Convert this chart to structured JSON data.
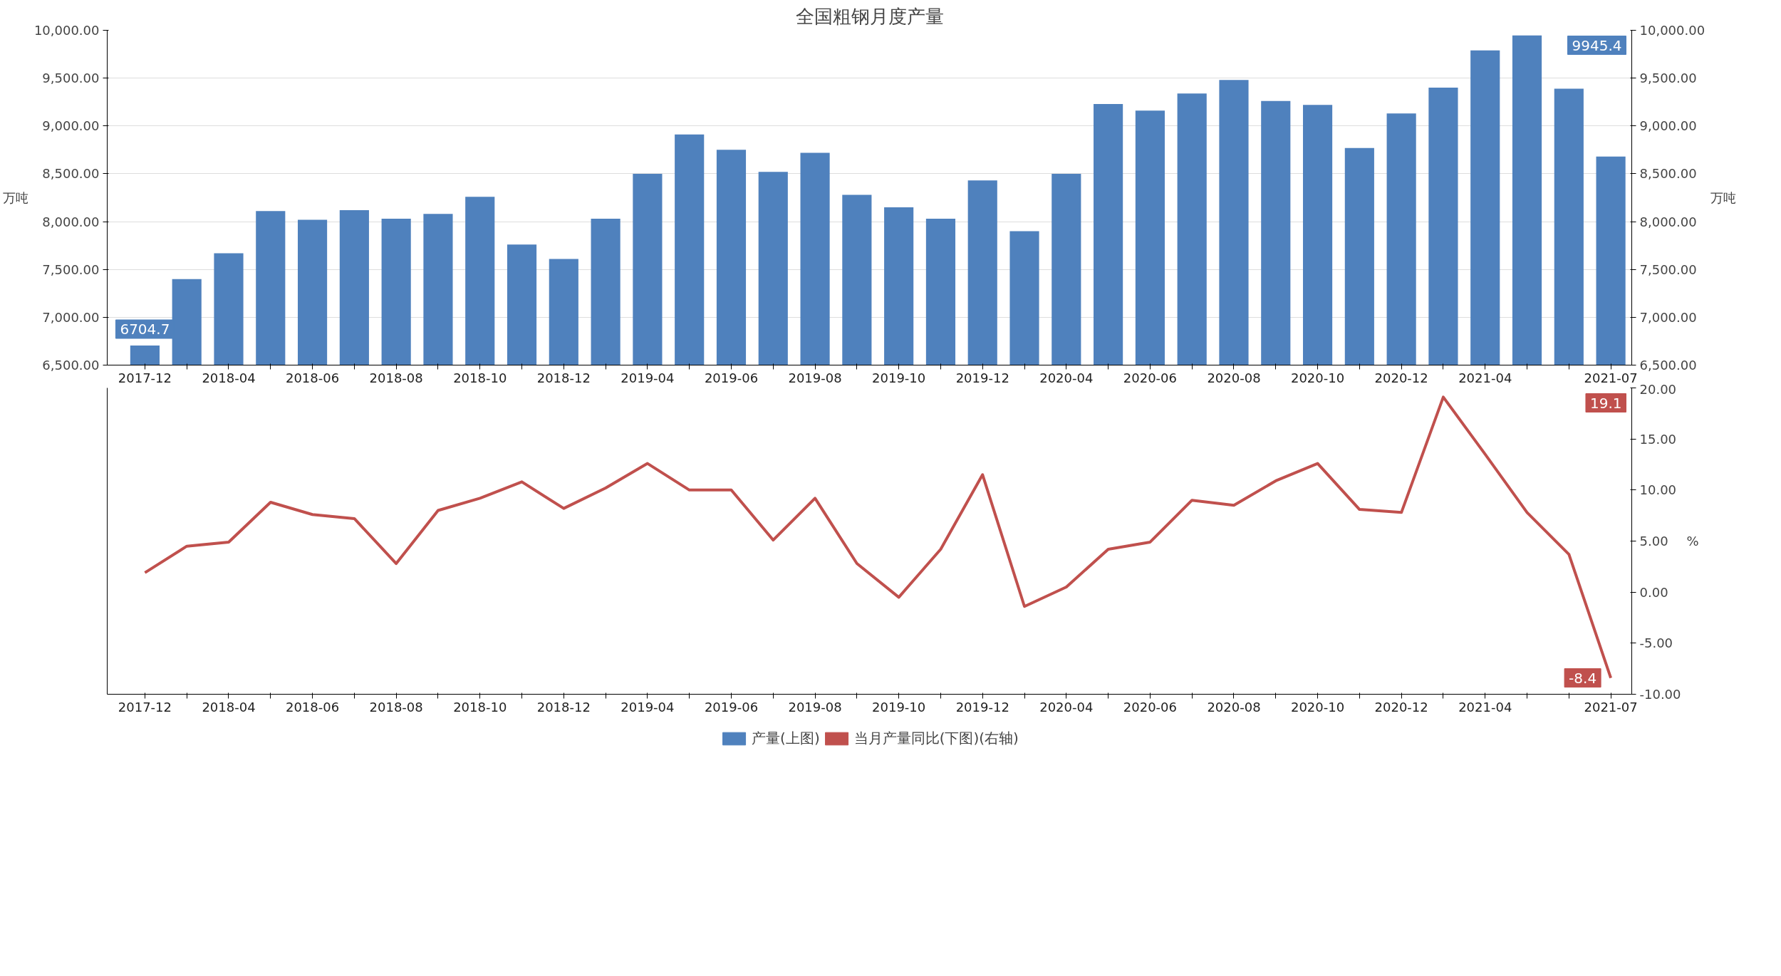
{
  "chart_data": [
    {
      "type": "bar",
      "title": "全国粗钢月度产量",
      "ylabel": "万吨",
      "y2label": "万吨",
      "categories": [
        "2017-12",
        null,
        "2018-04",
        null,
        "2018-06",
        null,
        "2018-08",
        null,
        "2018-10",
        null,
        "2018-12",
        null,
        "2019-04",
        null,
        "2019-06",
        null,
        "2019-08",
        null,
        "2019-10",
        null,
        "2019-12",
        null,
        "2020-04",
        null,
        "2020-06",
        null,
        "2020-08",
        null,
        "2020-10",
        null,
        "2020-12",
        null,
        "2021-04",
        null,
        null,
        "2021-07"
      ],
      "series": [
        {
          "name": "产量(上图)",
          "color": "#4f81bd",
          "values": [
            6704.7,
            7400,
            7670,
            8110,
            8020,
            8120,
            8030,
            8080,
            8260,
            7760,
            7610,
            8030,
            8500,
            8910,
            8750,
            8520,
            8720,
            8280,
            8150,
            8030,
            8430,
            7900,
            8500,
            9230,
            9160,
            9340,
            9480,
            9260,
            9220,
            8770,
            9130,
            9400,
            9790,
            9945.4,
            9390,
            8680
          ]
        }
      ],
      "ylim": [
        6500,
        10000
      ],
      "yticks": [
        {
          "value": 6500,
          "label": "6,500.00"
        },
        {
          "value": 7000,
          "label": "7,000.00"
        },
        {
          "value": 7500,
          "label": "7,500.00"
        },
        {
          "value": 8000,
          "label": "8,000.00"
        },
        {
          "value": 8500,
          "label": "8,500.00"
        },
        {
          "value": 9000,
          "label": "9,000.00"
        },
        {
          "value": 9500,
          "label": "9,500.00"
        },
        {
          "value": 10000,
          "label": "10,000.00"
        }
      ],
      "y2lim": [
        6500,
        10000
      ],
      "y2ticks": [
        {
          "value": 6500,
          "label": "6,500.00"
        },
        {
          "value": 7000,
          "label": "7,000.00"
        },
        {
          "value": 7500,
          "label": "7,500.00"
        },
        {
          "value": 8000,
          "label": "8,000.00"
        },
        {
          "value": 8500,
          "label": "8,500.00"
        },
        {
          "value": 9000,
          "label": "9,000.00"
        },
        {
          "value": 9500,
          "label": "9,500.00"
        },
        {
          "value": 10000,
          "label": "10,000.00"
        }
      ],
      "annotations": [
        {
          "text": "6704.7",
          "x": "2017-12",
          "y": 6704.7
        },
        "9945.4"
      ],
      "grid": "y",
      "legend": "bottom"
    },
    {
      "type": "line",
      "ylabel": "%",
      "categories": [
        "2017-12",
        null,
        "2018-04",
        null,
        "2018-06",
        null,
        "2018-08",
        null,
        "2018-10",
        null,
        "2018-12",
        null,
        "2019-04",
        null,
        "2019-06",
        null,
        "2019-08",
        null,
        "2019-10",
        null,
        "2019-12",
        null,
        "2020-04",
        null,
        "2020-06",
        null,
        "2020-08",
        null,
        "2020-10",
        null,
        "2020-12",
        null,
        "2021-04",
        null,
        null,
        "2021-07"
      ],
      "series": [
        {
          "name": "当月产量同比(下图)(右轴)",
          "color": "#c0504d",
          "values": [
            1.9,
            4.5,
            4.9,
            8.8,
            7.6,
            7.2,
            2.8,
            8.0,
            9.2,
            10.8,
            8.2,
            10.2,
            12.6,
            10.0,
            10.0,
            5.1,
            9.2,
            2.8,
            -0.5,
            4.2,
            11.5,
            -1.4,
            0.5,
            4.2,
            4.9,
            9.0,
            8.5,
            10.9,
            12.6,
            8.1,
            7.8,
            19.1,
            13.5,
            7.8,
            3.7,
            -8.4
          ]
        }
      ],
      "ylim": [
        -10,
        20
      ],
      "yticks": [
        {
          "value": -10,
          "label": "-10.00"
        },
        {
          "value": -5,
          "label": "-5.00"
        },
        {
          "value": 0,
          "label": "0.00"
        },
        {
          "value": 5,
          "label": "5.00"
        },
        {
          "value": 10,
          "label": "10.00"
        },
        {
          "value": 15,
          "label": "15.00"
        },
        {
          "value": 20,
          "label": "20.00"
        }
      ],
      "annotations": [
        "19.1",
        {
          "text": "-8.4",
          "x": "2021-07",
          "y": -8.4
        }
      ],
      "grid": false,
      "legend": "bottom",
      "line_style": "solid",
      "marker": "none"
    }
  ]
}
